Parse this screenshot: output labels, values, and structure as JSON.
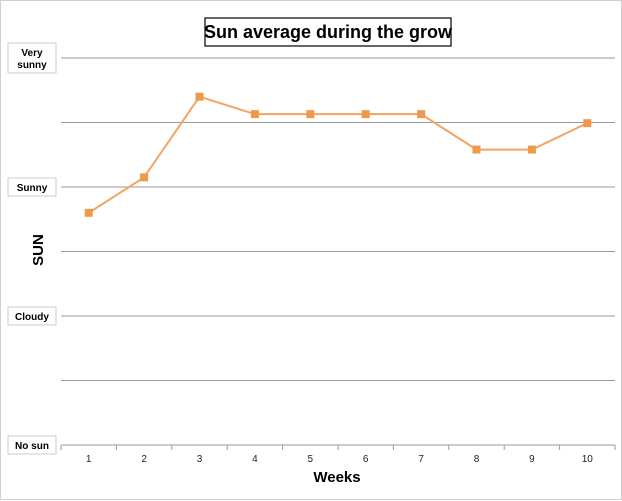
{
  "chart_data": {
    "type": "line",
    "title": "Sun average during the grow",
    "xlabel": "Weeks",
    "ylabel": "SUN",
    "x": [
      1,
      2,
      3,
      4,
      5,
      6,
      7,
      8,
      9,
      10
    ],
    "y_tick_labels": [
      {
        "value": 0,
        "label": "No sun"
      },
      {
        "value": 2,
        "label": "Cloudy"
      },
      {
        "value": 4,
        "label": "Sunny"
      },
      {
        "value": 6,
        "label": "Very sunny"
      }
    ],
    "ylim": [
      0,
      6
    ],
    "grid": true,
    "series": [
      {
        "values": [
          3.6,
          4.15,
          5.4,
          5.13,
          5.13,
          5.13,
          5.13,
          4.58,
          4.58,
          4.99
        ],
        "color": "#f4a460",
        "marker_color": "#ee9a4d"
      }
    ]
  }
}
